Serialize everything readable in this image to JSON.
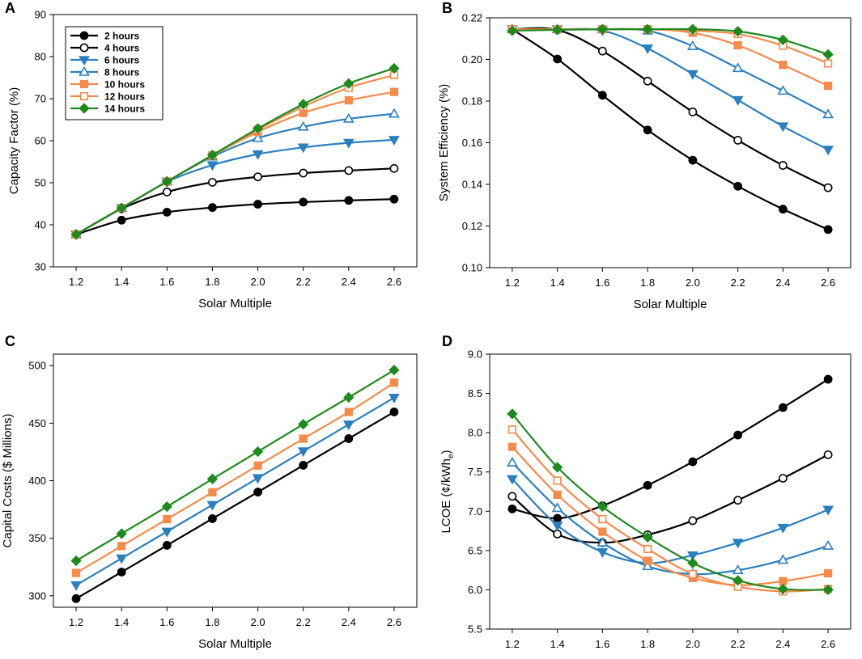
{
  "chart_data": [
    {
      "panel": "A",
      "type": "line",
      "xlabel": "Solar Multiple",
      "ylabel": "Capacity Factor (%)",
      "xlim": [
        1.1,
        2.7
      ],
      "ylim": [
        30,
        90
      ],
      "x_ticks": [
        "1.2",
        "1.4",
        "1.6",
        "1.8",
        "2.0",
        "2.2",
        "2.4",
        "2.6"
      ],
      "y_ticks": [
        "30",
        "40",
        "50",
        "60",
        "70",
        "80",
        "90"
      ],
      "x": [
        1.2,
        1.4,
        1.6,
        1.8,
        2.0,
        2.2,
        2.4,
        2.6
      ],
      "legend_position": "top-left",
      "series": [
        {
          "name": "2 hours",
          "color": "#000000",
          "marker": "circle",
          "fill": "filled",
          "values": [
            37.7,
            41.1,
            43.0,
            44.1,
            44.9,
            45.4,
            45.8,
            46.1
          ]
        },
        {
          "name": "4 hours",
          "color": "#000000",
          "marker": "circle",
          "fill": "open",
          "values": [
            37.7,
            43.8,
            47.8,
            50.1,
            51.4,
            52.3,
            52.9,
            53.4
          ]
        },
        {
          "name": "6 hours",
          "color": "#2a7fbf",
          "marker": "triangle-down",
          "fill": "filled",
          "values": [
            37.7,
            43.9,
            50.2,
            54.2,
            56.8,
            58.4,
            59.5,
            60.2
          ]
        },
        {
          "name": "8 hours",
          "color": "#2a7fbf",
          "marker": "triangle-up",
          "fill": "open",
          "values": [
            37.7,
            44.0,
            50.3,
            56.2,
            60.6,
            63.3,
            65.2,
            66.4
          ]
        },
        {
          "name": "10 hours",
          "color": "#f58a4b",
          "marker": "square",
          "fill": "filled",
          "values": [
            37.7,
            44.0,
            50.3,
            56.5,
            62.1,
            66.6,
            69.6,
            71.6
          ]
        },
        {
          "name": "12 hours",
          "color": "#f58a4b",
          "marker": "square",
          "fill": "open",
          "values": [
            37.7,
            44.0,
            50.3,
            56.5,
            62.6,
            68.1,
            72.6,
            75.6
          ]
        },
        {
          "name": "14 hours",
          "color": "#1e8a1e",
          "marker": "diamond",
          "fill": "filled",
          "values": [
            37.7,
            44.0,
            50.3,
            56.6,
            62.9,
            68.7,
            73.6,
            77.2
          ]
        }
      ]
    },
    {
      "panel": "B",
      "type": "line",
      "xlabel": "Solar Multiple",
      "ylabel": "System Efficiency (%)",
      "xlim": [
        1.1,
        2.7
      ],
      "ylim": [
        0.1,
        0.22
      ],
      "x_ticks": [
        "1.2",
        "1.4",
        "1.6",
        "1.8",
        "2.0",
        "2.2",
        "2.4",
        "2.6"
      ],
      "y_ticks": [
        "0.10",
        "0.12",
        "0.14",
        "0.16",
        "0.18",
        "0.20",
        "0.22"
      ],
      "x": [
        1.2,
        1.4,
        1.6,
        1.8,
        2.0,
        2.2,
        2.4,
        2.6
      ],
      "series": [
        {
          "name": "2 hours",
          "color": "#000000",
          "marker": "circle",
          "fill": "filled",
          "values": [
            0.2145,
            0.2002,
            0.1828,
            0.1661,
            0.1516,
            0.1391,
            0.1281,
            0.1183
          ]
        },
        {
          "name": "4 hours",
          "color": "#000000",
          "marker": "circle",
          "fill": "open",
          "values": [
            0.2145,
            0.2142,
            0.204,
            0.1896,
            0.1748,
            0.1612,
            0.1491,
            0.1384
          ]
        },
        {
          "name": "6 hours",
          "color": "#2a7fbf",
          "marker": "triangle-down",
          "fill": "filled",
          "values": [
            0.2145,
            0.2145,
            0.2138,
            0.2053,
            0.193,
            0.1805,
            0.1679,
            0.1567
          ]
        },
        {
          "name": "8 hours",
          "color": "#2a7fbf",
          "marker": "triangle-up",
          "fill": "open",
          "values": [
            0.2145,
            0.2145,
            0.2145,
            0.2138,
            0.2064,
            0.1958,
            0.1849,
            0.1736
          ]
        },
        {
          "name": "10 hours",
          "color": "#f58a4b",
          "marker": "square",
          "fill": "filled",
          "values": [
            0.2145,
            0.2145,
            0.2145,
            0.2145,
            0.2128,
            0.2068,
            0.1974,
            0.1873
          ]
        },
        {
          "name": "12 hours",
          "color": "#f58a4b",
          "marker": "square",
          "fill": "open",
          "values": [
            0.2145,
            0.2145,
            0.2145,
            0.2145,
            0.2138,
            0.2122,
            0.2066,
            0.1981
          ]
        },
        {
          "name": "14 hours",
          "color": "#1e8a1e",
          "marker": "diamond",
          "fill": "filled",
          "values": [
            0.2138,
            0.2142,
            0.2145,
            0.2145,
            0.2145,
            0.2135,
            0.2094,
            0.2024
          ]
        }
      ]
    },
    {
      "panel": "C",
      "type": "line",
      "xlabel": "Solar Multiple",
      "ylabel": "Capital Costs ($ Millions)",
      "xlim": [
        1.1,
        2.7
      ],
      "ylim": [
        290,
        510
      ],
      "x_ticks": [
        "1.2",
        "1.4",
        "1.6",
        "1.8",
        "2.0",
        "2.2",
        "2.4",
        "2.6"
      ],
      "y_ticks": [
        "300",
        "350",
        "400",
        "450",
        "500"
      ],
      "y_tick_values": [
        300,
        350,
        400,
        450,
        500
      ],
      "x": [
        1.2,
        1.4,
        1.6,
        1.8,
        2.0,
        2.2,
        2.4,
        2.6
      ],
      "series": [
        {
          "name": "2 hours",
          "color": "#000000",
          "marker": "circle",
          "fill": "filled",
          "values": [
            297.5,
            320.6,
            343.8,
            367.0,
            390.1,
            413.4,
            436.6,
            459.8
          ]
        },
        {
          "name": "6 hours",
          "color": "#2a7fbf",
          "marker": "triangle-down",
          "fill": "filled",
          "values": [
            309.2,
            332.5,
            355.8,
            379.0,
            402.3,
            425.6,
            448.9,
            472.2
          ]
        },
        {
          "name": "10 hours",
          "color": "#f58a4b",
          "marker": "square",
          "fill": "filled",
          "values": [
            319.8,
            343.2,
            366.6,
            389.9,
            413.2,
            436.5,
            459.7,
            485.2
          ]
        },
        {
          "name": "14 hours",
          "color": "#1e8a1e",
          "marker": "diamond",
          "fill": "filled",
          "values": [
            330.4,
            354.0,
            377.5,
            401.5,
            425.3,
            449.1,
            472.4,
            496.2
          ]
        }
      ]
    },
    {
      "panel": "D",
      "type": "line",
      "xlabel": "Solar Multiple",
      "ylabel": "LCOE (¢/kWh",
      "ylabel_subscript": "e",
      "ylabel_suffix": ")",
      "xlim": [
        1.1,
        2.7
      ],
      "ylim": [
        5.5,
        9.0
      ],
      "x_ticks": [
        "1.2",
        "1.4",
        "1.6",
        "1.8",
        "2.0",
        "2.2",
        "2.4",
        "2.6"
      ],
      "y_ticks": [
        "5.5",
        "6.0",
        "6.5",
        "7.0",
        "7.5",
        "8.0",
        "8.5",
        "9.0"
      ],
      "x": [
        1.2,
        1.4,
        1.6,
        1.8,
        2.0,
        2.2,
        2.4,
        2.6
      ],
      "series": [
        {
          "name": "2 hours",
          "color": "#000000",
          "marker": "circle",
          "fill": "filled",
          "values": [
            7.03,
            6.91,
            7.07,
            7.33,
            7.63,
            7.97,
            8.32,
            8.68
          ]
        },
        {
          "name": "4 hours",
          "color": "#000000",
          "marker": "circle",
          "fill": "open",
          "values": [
            7.19,
            6.71,
            6.6,
            6.7,
            6.88,
            7.14,
            7.42,
            7.72
          ]
        },
        {
          "name": "6 hours",
          "color": "#2a7fbf",
          "marker": "triangle-down",
          "fill": "filled",
          "values": [
            7.41,
            6.82,
            6.48,
            6.34,
            6.44,
            6.6,
            6.79,
            7.02
          ]
        },
        {
          "name": "8 hours",
          "color": "#2a7fbf",
          "marker": "triangle-up",
          "fill": "open",
          "values": [
            7.62,
            7.04,
            6.6,
            6.3,
            6.2,
            6.25,
            6.38,
            6.56
          ]
        },
        {
          "name": "10 hours",
          "color": "#f58a4b",
          "marker": "square",
          "fill": "filled",
          "values": [
            7.82,
            7.21,
            6.74,
            6.37,
            6.15,
            6.06,
            6.11,
            6.21
          ]
        },
        {
          "name": "12 hours",
          "color": "#f58a4b",
          "marker": "square",
          "fill": "open",
          "values": [
            8.04,
            7.39,
            6.9,
            6.52,
            6.2,
            6.04,
            5.98,
            6.01
          ]
        },
        {
          "name": "14 hours",
          "color": "#1e8a1e",
          "marker": "diamond",
          "fill": "filled",
          "values": [
            8.24,
            7.56,
            7.06,
            6.67,
            6.34,
            6.12,
            6.01,
            6.0
          ]
        }
      ]
    }
  ]
}
